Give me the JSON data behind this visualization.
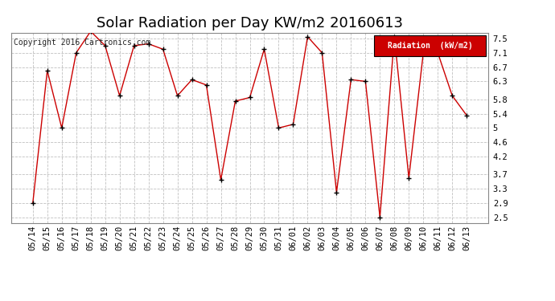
{
  "title": "Solar Radiation per Day KW/m2 20160613",
  "copyright_text": "Copyright 2016 Cartronics.com",
  "legend_label": "Radiation  (kW/m2)",
  "ylabel_ticks": [
    2.5,
    2.9,
    3.3,
    3.7,
    4.2,
    4.6,
    5.0,
    5.4,
    5.8,
    6.3,
    6.7,
    7.1,
    7.5
  ],
  "ylim": [
    2.35,
    7.65
  ],
  "dates": [
    "05/14",
    "05/15",
    "05/16",
    "05/17",
    "05/18",
    "05/19",
    "05/20",
    "05/21",
    "05/22",
    "05/23",
    "05/24",
    "05/25",
    "05/26",
    "05/27",
    "05/28",
    "05/29",
    "05/30",
    "05/31",
    "06/01",
    "06/02",
    "06/03",
    "06/04",
    "06/05",
    "06/06",
    "06/07",
    "06/08",
    "06/09",
    "06/10",
    "06/11",
    "06/12",
    "06/13"
  ],
  "values": [
    2.9,
    6.6,
    5.0,
    7.1,
    7.7,
    7.3,
    5.9,
    7.3,
    7.35,
    7.2,
    5.9,
    6.35,
    6.2,
    3.55,
    5.75,
    5.85,
    7.2,
    5.0,
    5.1,
    7.55,
    7.1,
    3.2,
    6.35,
    6.3,
    2.5,
    7.55,
    3.6,
    7.1,
    7.1,
    5.9,
    5.35
  ],
  "line_color": "#cc0000",
  "marker_color": "#000000",
  "background_color": "#ffffff",
  "grid_color": "#c0c0c0",
  "title_fontsize": 13,
  "tick_fontsize": 7.5,
  "legend_bg": "#cc0000",
  "legend_fg": "#ffffff",
  "copyright_fontsize": 7,
  "border_color": "#888888"
}
